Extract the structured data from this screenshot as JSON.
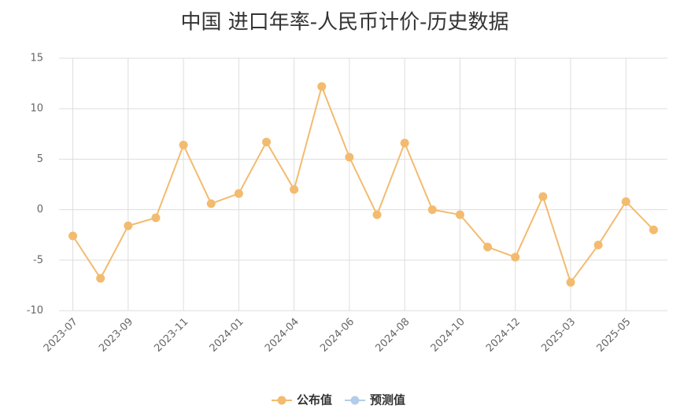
{
  "chart_data": {
    "type": "line",
    "title": "中国 进口年率-人民币计价-历史数据",
    "categories": [
      "2023-07",
      null,
      "2023-09",
      null,
      "2023-11",
      null,
      "2024-01",
      null,
      "2024-04",
      null,
      "2024-06",
      null,
      "2024-08",
      null,
      "2024-10",
      null,
      "2024-12",
      null,
      "2025-03",
      null,
      "2025-05",
      null
    ],
    "series": [
      {
        "name": "公布值",
        "color": "#f3bb6f",
        "values": [
          -2.6,
          -6.8,
          -1.6,
          -0.8,
          6.4,
          0.6,
          1.6,
          6.7,
          2.0,
          12.2,
          5.2,
          -0.5,
          6.6,
          0.0,
          -0.5,
          -3.7,
          -4.7,
          1.3,
          -7.2,
          -3.5,
          0.8,
          -2.0
        ]
      },
      {
        "name": "预测值",
        "color": "#b3cde8",
        "values": [
          null,
          null,
          null,
          null,
          null,
          null,
          null,
          null,
          null,
          null,
          null,
          null,
          null,
          null,
          null,
          null,
          null,
          null,
          null,
          null,
          null,
          null
        ]
      }
    ],
    "ylim": [
      -10,
      15
    ],
    "yticks": [
      -10,
      -5,
      0,
      5,
      10,
      15
    ],
    "grid": true,
    "legend": "bottom"
  }
}
